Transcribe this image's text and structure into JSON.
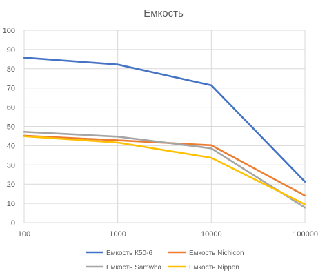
{
  "chart_data": {
    "type": "line",
    "title": "Емкость",
    "x_scale": "log",
    "x": [
      100,
      1000,
      10000,
      100000
    ],
    "x_tick_labels": [
      "100",
      "1000",
      "10000",
      "100000"
    ],
    "ylim": [
      0,
      100
    ],
    "y_ticks": [
      0,
      10,
      20,
      30,
      40,
      50,
      60,
      70,
      80,
      90,
      100
    ],
    "grid": true,
    "legend_position": "bottom",
    "series": [
      {
        "name": "Емкость К50-6",
        "color": "#4472C4",
        "values": [
          85.8,
          82.2,
          71.4,
          21.3
        ]
      },
      {
        "name": "Емкость Nichicon",
        "color": "#ED7D31",
        "values": [
          45.2,
          42.8,
          40.2,
          14.0
        ]
      },
      {
        "name": "Емкость Samwha",
        "color": "#A5A5A5",
        "values": [
          47.2,
          44.7,
          38.6,
          7.8
        ]
      },
      {
        "name": "Емкость Nippon",
        "color": "#FFC000",
        "values": [
          44.9,
          41.6,
          33.7,
          9.5
        ]
      }
    ]
  }
}
